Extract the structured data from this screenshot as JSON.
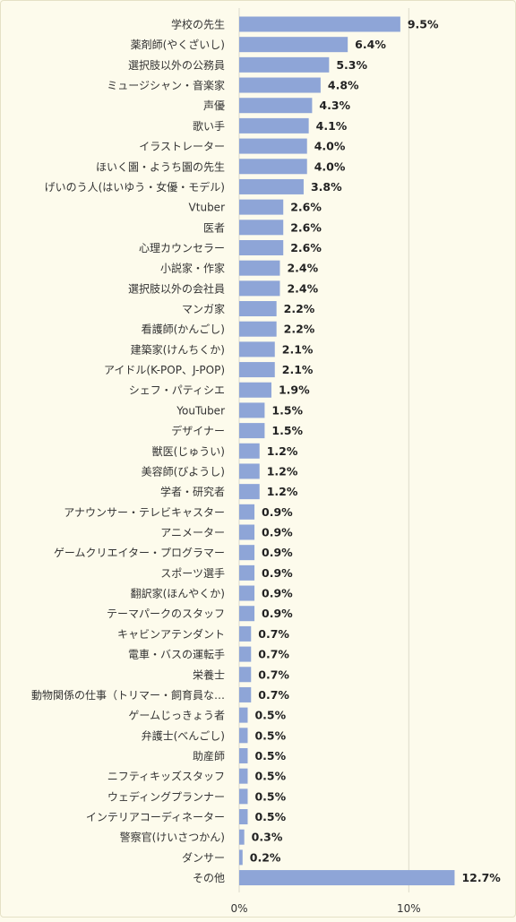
{
  "chart_data": {
    "type": "bar",
    "orientation": "horizontal",
    "categories": [
      "学校の先生",
      "薬剤師(やくざいし)",
      "選択肢以外の公務員",
      "ミュージシャン・音楽家",
      "声優",
      "歌い手",
      "イラストレーター",
      "ほいく園・ようち園の先生",
      "げいのう人(はいゆう・女優・モデル)",
      "Vtuber",
      "医者",
      "心理カウンセラー",
      "小説家・作家",
      "選択肢以外の会社員",
      "マンガ家",
      "看護師(かんごし)",
      "建築家(けんちくか)",
      "アイドル(K-POP、J-POP)",
      "シェフ・パティシエ",
      "YouTuber",
      "デザイナー",
      "獣医(じゅうい)",
      "美容師(びようし)",
      "学者・研究者",
      "アナウンサー・テレビキャスター",
      "アニメーター",
      "ゲームクリエイター・プログラマー",
      "スポーツ選手",
      "翻訳家(ほんやくか)",
      "テーマパークのスタッフ",
      "キャビンアテンダント",
      "電車・バスの運転手",
      "栄養士",
      "動物関係の仕事（トリマー・飼育員な…",
      "ゲームじっきょう者",
      "弁護士(べんごし)",
      "助産師",
      "ニフティキッズスタッフ",
      "ウェディングプランナー",
      "インテリアコーディネーター",
      "警察官(けいさつかん)",
      "ダンサー",
      "その他"
    ],
    "values": [
      9.5,
      6.4,
      5.3,
      4.8,
      4.3,
      4.1,
      4.0,
      4.0,
      3.8,
      2.6,
      2.6,
      2.6,
      2.4,
      2.4,
      2.2,
      2.2,
      2.1,
      2.1,
      1.9,
      1.5,
      1.5,
      1.2,
      1.2,
      1.2,
      0.9,
      0.9,
      0.9,
      0.9,
      0.9,
      0.9,
      0.7,
      0.7,
      0.7,
      0.7,
      0.5,
      0.5,
      0.5,
      0.5,
      0.5,
      0.5,
      0.3,
      0.2,
      12.7
    ],
    "value_labels": [
      "9.5%",
      "6.4%",
      "5.3%",
      "4.8%",
      "4.3%",
      "4.1%",
      "4.0%",
      "4.0%",
      "3.8%",
      "2.6%",
      "2.6%",
      "2.6%",
      "2.4%",
      "2.4%",
      "2.2%",
      "2.2%",
      "2.1%",
      "2.1%",
      "1.9%",
      "1.5%",
      "1.5%",
      "1.2%",
      "1.2%",
      "1.2%",
      "0.9%",
      "0.9%",
      "0.9%",
      "0.9%",
      "0.9%",
      "0.9%",
      "0.7%",
      "0.7%",
      "0.7%",
      "0.7%",
      "0.5%",
      "0.5%",
      "0.5%",
      "0.5%",
      "0.5%",
      "0.5%",
      "0.3%",
      "0.2%",
      "12.7%"
    ],
    "xlim": [
      0,
      15
    ],
    "xticks": [
      0,
      10
    ],
    "xtick_labels": [
      "0%",
      "10%"
    ],
    "grid": true,
    "legend": "none",
    "colors": {
      "bar": "#8ea5d7",
      "background": "#fdfbec",
      "grid": "#dcdacb",
      "label_text": "#333333",
      "value_text": "#222222"
    }
  }
}
